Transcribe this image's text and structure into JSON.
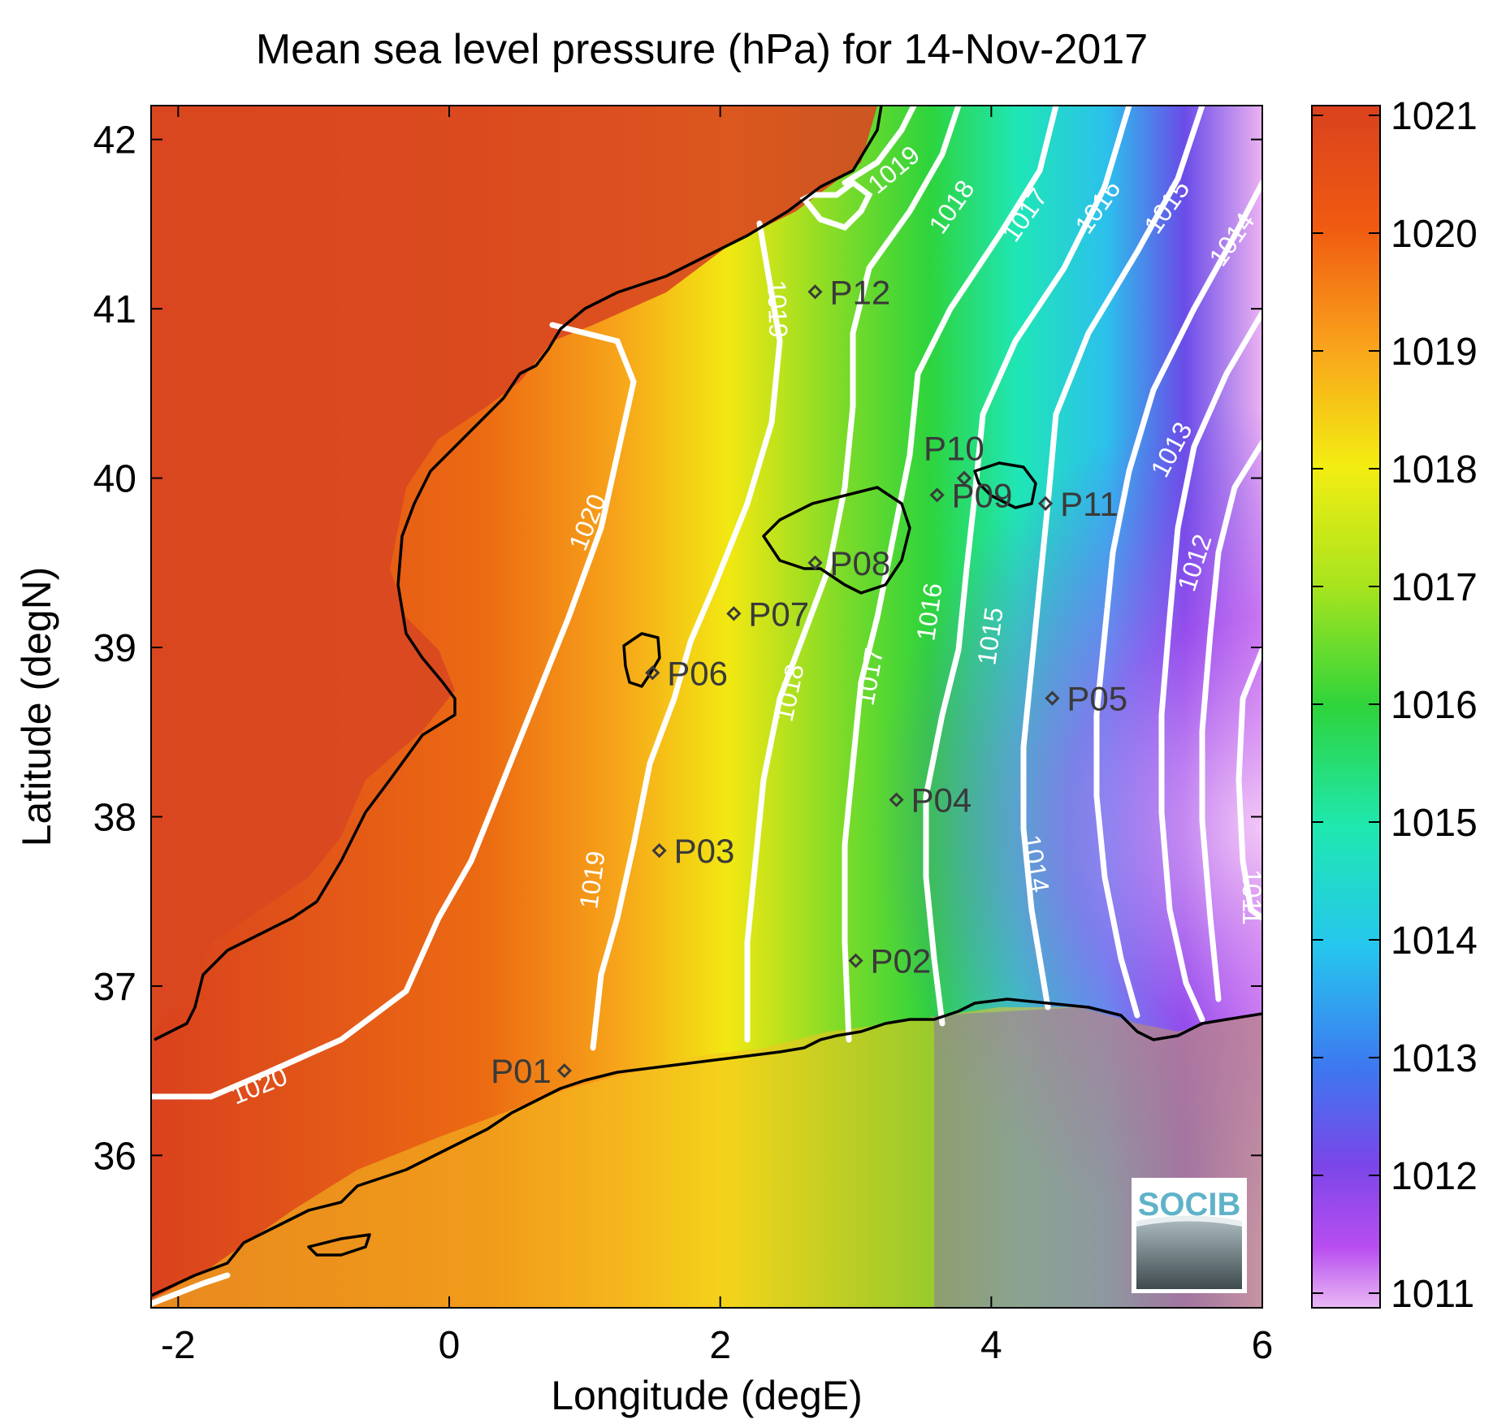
{
  "title": "Mean sea level pressure (hPa) for 14-Nov-2017",
  "xlabel": "Longitude (degE)",
  "ylabel": "Latitude (degN)",
  "x_ticks": [
    "-2",
    "0",
    "2",
    "4",
    "6"
  ],
  "y_ticks": [
    "42",
    "41",
    "40",
    "39",
    "38",
    "37",
    "36"
  ],
  "colorbar": {
    "ticks": [
      "1021",
      "1020",
      "1019",
      "1018",
      "1017",
      "1016",
      "1015",
      "1014",
      "1013",
      "1012",
      "1011"
    ],
    "colors": [
      "#d9421e",
      "#f05a10",
      "#f9a21c",
      "#f3ed12",
      "#a7e41e",
      "#2ed43c",
      "#1fe8b0",
      "#26c6ee",
      "#3d78f0",
      "#7a46e8",
      "#b84ef0",
      "#e9b8f4"
    ]
  },
  "stations": [
    {
      "name": "P01",
      "lon": 0.85,
      "lat": 36.5
    },
    {
      "name": "P02",
      "lon": 3.0,
      "lat": 37.15
    },
    {
      "name": "P03",
      "lon": 1.55,
      "lat": 37.8
    },
    {
      "name": "P04",
      "lon": 3.3,
      "lat": 38.1
    },
    {
      "name": "P05",
      "lon": 4.45,
      "lat": 38.7
    },
    {
      "name": "P06",
      "lon": 1.5,
      "lat": 38.85
    },
    {
      "name": "P07",
      "lon": 2.1,
      "lat": 39.2
    },
    {
      "name": "P08",
      "lon": 2.7,
      "lat": 39.5
    },
    {
      "name": "P09",
      "lon": 3.6,
      "lat": 39.9
    },
    {
      "name": "P10",
      "lon": 3.8,
      "lat": 40.0
    },
    {
      "name": "P11",
      "lon": 4.4,
      "lat": 39.85
    },
    {
      "name": "P12",
      "lon": 2.7,
      "lat": 41.1
    }
  ],
  "contour_labels": [
    "1020",
    "1020",
    "1019",
    "1019",
    "1019",
    "1018",
    "1018",
    "1017",
    "1017",
    "1016",
    "1016",
    "1015",
    "1015",
    "1014",
    "1014",
    "1013",
    "1012",
    "1011"
  ],
  "logo_text": "SOCIB",
  "colors": {
    "coastline": "#000000",
    "contour": "#ffffff",
    "station": "#3a3a3a"
  }
}
